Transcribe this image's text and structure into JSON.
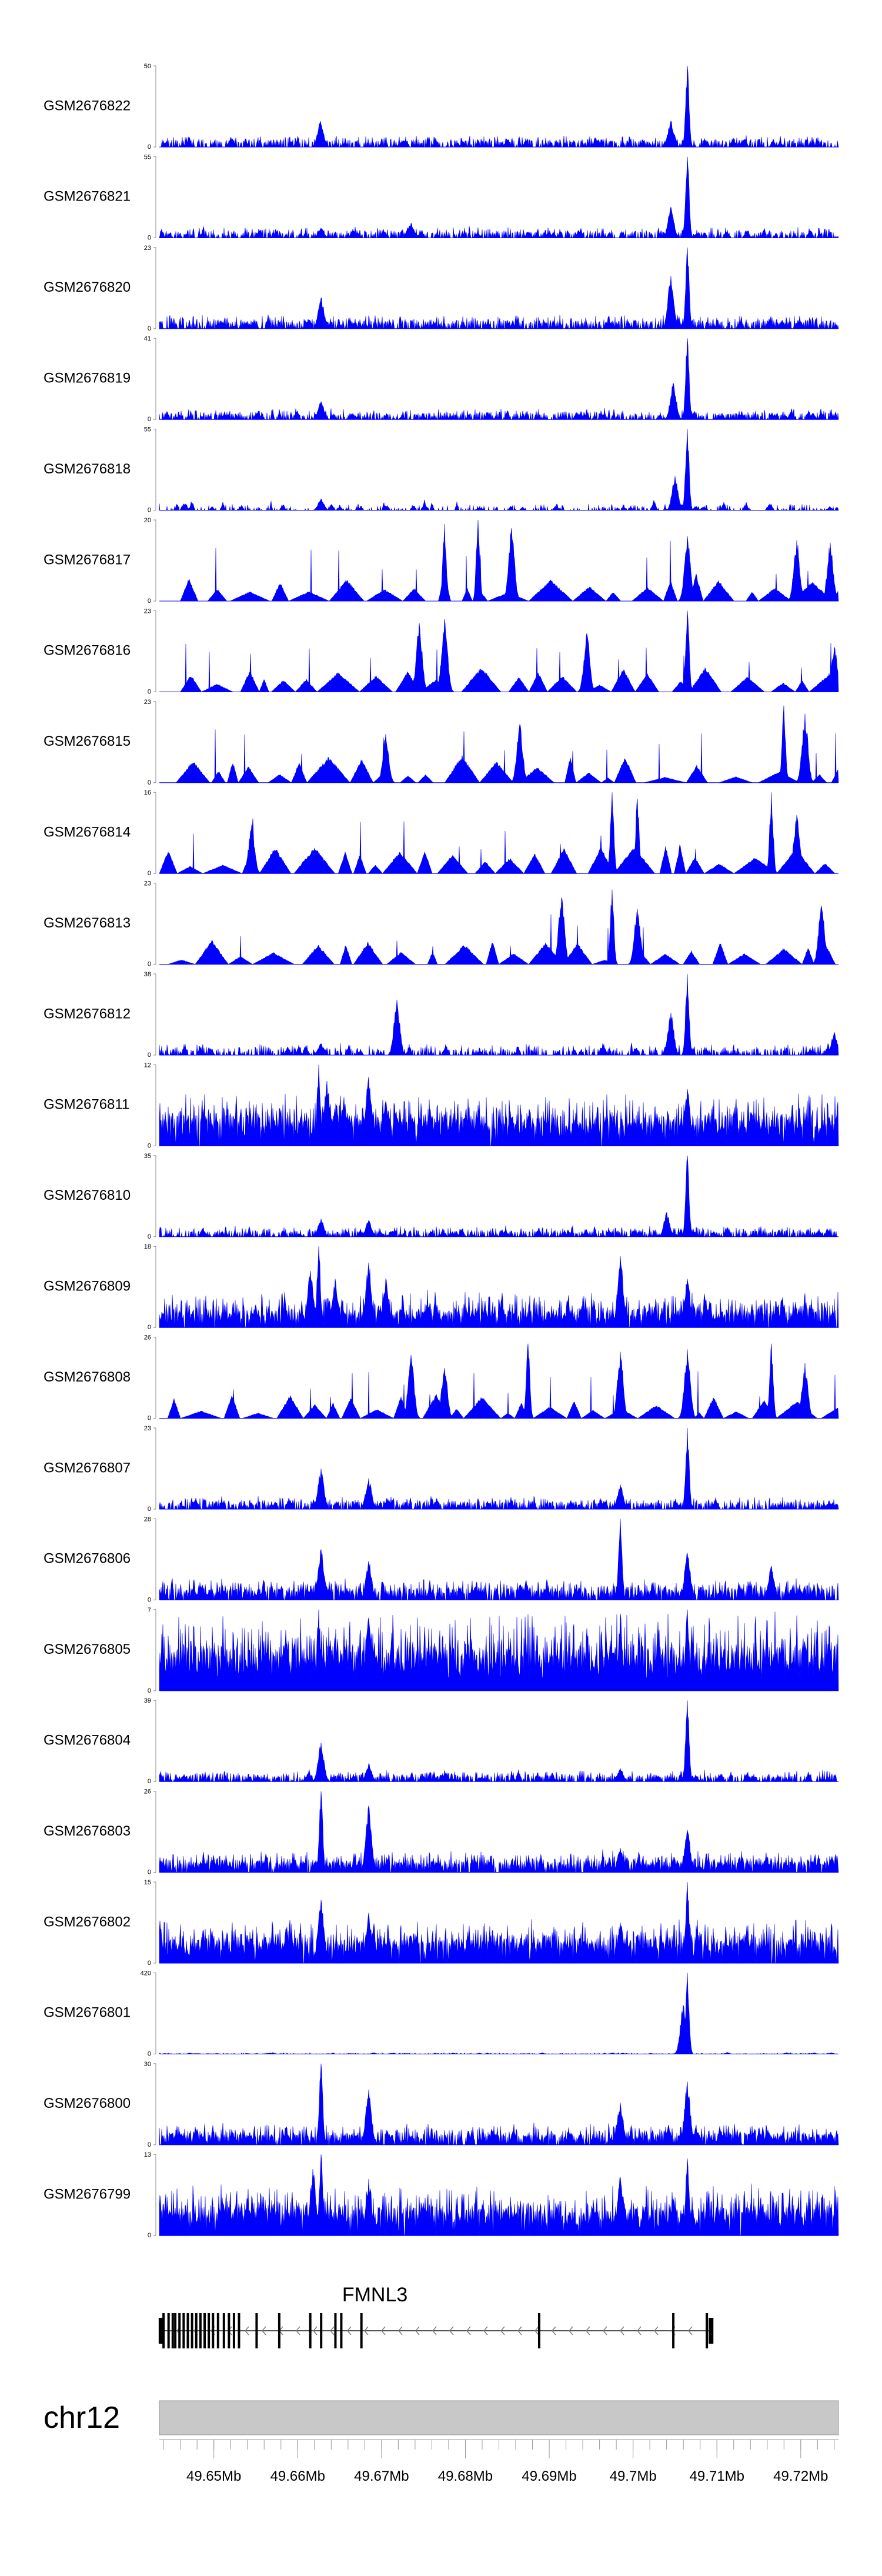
{
  "chart_data": {
    "type": "area",
    "plot_kind": "genome coverage tracks",
    "region": {
      "chromosome": "chr12",
      "start_mb": 49.6435,
      "end_mb": 49.7245
    },
    "series_color": "#0000ff",
    "tracks": [
      {
        "name": "GSM2676822",
        "ymax": 50,
        "ymin": 0,
        "baseline": 0.06,
        "noise": 0.07,
        "density": 0.55,
        "sparse": false,
        "peaks": [
          [
            49.6627,
            0.32
          ],
          [
            49.7065,
            1.0
          ],
          [
            49.7045,
            0.32
          ]
        ]
      },
      {
        "name": "GSM2676821",
        "ymax": 55,
        "ymin": 0,
        "baseline": 0.05,
        "noise": 0.07,
        "density": 0.55,
        "sparse": false,
        "peaks": [
          [
            49.6735,
            0.18
          ],
          [
            49.6628,
            0.12
          ],
          [
            49.7065,
            1.0
          ],
          [
            49.7045,
            0.38
          ]
        ]
      },
      {
        "name": "GSM2676820",
        "ymax": 23,
        "ymin": 0,
        "baseline": 0.07,
        "noise": 0.09,
        "density": 0.6,
        "sparse": false,
        "peaks": [
          [
            49.6628,
            0.38
          ],
          [
            49.7065,
            1.0
          ],
          [
            49.7045,
            0.65
          ]
        ]
      },
      {
        "name": "GSM2676819",
        "ymax": 41,
        "ymin": 0,
        "baseline": 0.05,
        "noise": 0.07,
        "density": 0.55,
        "sparse": false,
        "peaks": [
          [
            49.6628,
            0.22
          ],
          [
            49.7065,
            1.0
          ],
          [
            49.7048,
            0.45
          ]
        ]
      },
      {
        "name": "GSM2676818",
        "ymax": 55,
        "ymin": 0,
        "baseline": 0.02,
        "noise": 0.06,
        "density": 0.25,
        "sparse": false,
        "peaks": [
          [
            49.6628,
            0.14
          ],
          [
            49.7065,
            1.0
          ],
          [
            49.705,
            0.42
          ]
        ]
      },
      {
        "name": "GSM2676817",
        "ymax": 20,
        "ymin": 0,
        "baseline": 0.0,
        "noise": 0.42,
        "density": 0.12,
        "sparse": true,
        "start_mb": 49.646,
        "peaks": [
          [
            49.6775,
            0.95
          ],
          [
            49.6815,
            1.0
          ],
          [
            49.6855,
            0.9
          ],
          [
            49.7065,
            0.8
          ],
          [
            49.7195,
            0.75
          ],
          [
            49.7235,
            0.72
          ]
        ]
      },
      {
        "name": "GSM2676816",
        "ymax": 23,
        "ymin": 0,
        "baseline": 0.0,
        "noise": 0.38,
        "density": 0.12,
        "sparse": true,
        "start_mb": 49.646,
        "peaks": [
          [
            49.6745,
            0.85
          ],
          [
            49.6775,
            0.9
          ],
          [
            49.6945,
            0.72
          ],
          [
            49.7065,
            1.0
          ],
          [
            49.724,
            0.55
          ]
        ]
      },
      {
        "name": "GSM2676815",
        "ymax": 23,
        "ymin": 0,
        "baseline": 0.0,
        "noise": 0.4,
        "density": 0.09,
        "sparse": true,
        "start_mb": 49.6455,
        "peaks": [
          [
            49.6705,
            0.6
          ],
          [
            49.6865,
            0.72
          ],
          [
            49.718,
            0.95
          ],
          [
            49.7205,
            0.85
          ]
        ]
      },
      {
        "name": "GSM2676814",
        "ymax": 16,
        "ymin": 0,
        "baseline": 0.0,
        "noise": 0.42,
        "density": 0.12,
        "sparse": true,
        "start_mb": 49.6435,
        "peaks": [
          [
            49.6545,
            0.6
          ],
          [
            49.6975,
            1.0
          ],
          [
            49.7005,
            0.92
          ],
          [
            49.7165,
            1.0
          ],
          [
            49.7195,
            0.72
          ]
        ]
      },
      {
        "name": "GSM2676813",
        "ymax": 23,
        "ymin": 0,
        "baseline": 0.0,
        "noise": 0.36,
        "density": 0.1,
        "sparse": true,
        "start_mb": 49.6445,
        "peaks": [
          [
            49.6915,
            0.82
          ],
          [
            49.6975,
            0.92
          ],
          [
            49.7005,
            0.68
          ],
          [
            49.7225,
            0.72
          ]
        ]
      },
      {
        "name": "GSM2676812",
        "ymax": 38,
        "ymin": 0,
        "baseline": 0.05,
        "noise": 0.08,
        "density": 0.45,
        "sparse": false,
        "peaks": [
          [
            49.6718,
            0.68
          ],
          [
            49.6628,
            0.14
          ],
          [
            49.7065,
            1.0
          ],
          [
            49.7045,
            0.52
          ],
          [
            49.724,
            0.28
          ]
        ]
      },
      {
        "name": "GSM2676811",
        "ymax": 12,
        "ymin": 0,
        "baseline": 0.28,
        "noise": 0.3,
        "density": 0.95,
        "sparse": false,
        "peaks": [
          [
            49.6625,
            1.0
          ],
          [
            49.6635,
            0.8
          ],
          [
            49.6655,
            0.6
          ],
          [
            49.6685,
            0.85
          ],
          [
            49.6705,
            0.55
          ],
          [
            49.7065,
            0.7
          ],
          [
            49.7245,
            0.58
          ]
        ]
      },
      {
        "name": "GSM2676810",
        "ymax": 35,
        "ymin": 0,
        "baseline": 0.05,
        "noise": 0.07,
        "density": 0.55,
        "sparse": false,
        "peaks": [
          [
            49.6628,
            0.22
          ],
          [
            49.6685,
            0.2
          ],
          [
            49.7065,
            1.0
          ],
          [
            49.704,
            0.3
          ]
        ]
      },
      {
        "name": "GSM2676809",
        "ymax": 18,
        "ymin": 0,
        "baseline": 0.16,
        "noise": 0.24,
        "density": 0.9,
        "sparse": false,
        "peaks": [
          [
            49.6625,
            1.0
          ],
          [
            49.6615,
            0.7
          ],
          [
            49.6645,
            0.6
          ],
          [
            49.6685,
            0.8
          ],
          [
            49.6705,
            0.6
          ],
          [
            49.6985,
            0.88
          ],
          [
            49.7065,
            0.6
          ]
        ]
      },
      {
        "name": "GSM2676808",
        "ymax": 26,
        "ymin": 0,
        "baseline": 0.0,
        "noise": 0.36,
        "density": 0.13,
        "sparse": true,
        "start_mb": 49.6445,
        "peaks": [
          [
            49.6735,
            0.78
          ],
          [
            49.6775,
            0.62
          ],
          [
            49.6875,
            0.92
          ],
          [
            49.6985,
            0.82
          ],
          [
            49.7065,
            0.85
          ],
          [
            49.7165,
            0.92
          ],
          [
            49.7205,
            0.68
          ]
        ]
      },
      {
        "name": "GSM2676807",
        "ymax": 23,
        "ymin": 0,
        "baseline": 0.06,
        "noise": 0.08,
        "density": 0.6,
        "sparse": false,
        "peaks": [
          [
            49.6628,
            0.5
          ],
          [
            49.6685,
            0.38
          ],
          [
            49.6985,
            0.3
          ],
          [
            49.7065,
            1.0
          ]
        ]
      },
      {
        "name": "GSM2676806",
        "ymax": 28,
        "ymin": 0,
        "baseline": 0.1,
        "noise": 0.14,
        "density": 0.75,
        "sparse": false,
        "peaks": [
          [
            49.6628,
            0.62
          ],
          [
            49.6685,
            0.48
          ],
          [
            49.6985,
            1.0
          ],
          [
            49.7065,
            0.58
          ],
          [
            49.7165,
            0.42
          ]
        ]
      },
      {
        "name": "GSM2676805",
        "ymax": 7,
        "ymin": 0,
        "baseline": 0.4,
        "noise": 0.45,
        "density": 1.0,
        "sparse": false,
        "peaks": [
          [
            49.6625,
            1.0
          ],
          [
            49.6685,
            0.9
          ],
          [
            49.6985,
            0.95
          ],
          [
            49.7065,
            1.0
          ]
        ]
      },
      {
        "name": "GSM2676804",
        "ymax": 39,
        "ymin": 0,
        "baseline": 0.05,
        "noise": 0.08,
        "density": 0.6,
        "sparse": false,
        "peaks": [
          [
            49.6628,
            0.48
          ],
          [
            49.6685,
            0.22
          ],
          [
            49.6985,
            0.16
          ],
          [
            49.7065,
            1.0
          ]
        ]
      },
      {
        "name": "GSM2676803",
        "ymax": 26,
        "ymin": 0,
        "baseline": 0.1,
        "noise": 0.14,
        "density": 0.8,
        "sparse": false,
        "peaks": [
          [
            49.6628,
            1.0
          ],
          [
            49.6685,
            0.82
          ],
          [
            49.6985,
            0.3
          ],
          [
            49.7065,
            0.52
          ]
        ]
      },
      {
        "name": "GSM2676802",
        "ymax": 15,
        "ymin": 0,
        "baseline": 0.22,
        "noise": 0.28,
        "density": 0.95,
        "sparse": false,
        "peaks": [
          [
            49.6628,
            0.78
          ],
          [
            49.6685,
            0.62
          ],
          [
            49.6985,
            0.5
          ],
          [
            49.7065,
            1.0
          ]
        ]
      },
      {
        "name": "GSM2676801",
        "ymax": 420,
        "ymin": 0,
        "baseline": 0.004,
        "noise": 0.01,
        "density": 0.3,
        "sparse": false,
        "peaks": [
          [
            49.7065,
            1.0
          ],
          [
            49.706,
            0.6
          ]
        ]
      },
      {
        "name": "GSM2676800",
        "ymax": 30,
        "ymin": 0,
        "baseline": 0.1,
        "noise": 0.14,
        "density": 0.8,
        "sparse": false,
        "peaks": [
          [
            49.6628,
            1.0
          ],
          [
            49.6685,
            0.68
          ],
          [
            49.6985,
            0.52
          ],
          [
            49.7065,
            0.78
          ]
        ]
      },
      {
        "name": "GSM2676799",
        "ymax": 13,
        "ymin": 0,
        "baseline": 0.26,
        "noise": 0.3,
        "density": 0.95,
        "sparse": false,
        "peaks": [
          [
            49.6628,
            1.0
          ],
          [
            49.6618,
            0.82
          ],
          [
            49.6685,
            0.7
          ],
          [
            49.6985,
            0.72
          ],
          [
            49.7065,
            0.95
          ]
        ]
      }
    ],
    "gene": {
      "name": "FMNL3",
      "start_mb": 49.6435,
      "end_mb": 49.7093,
      "strand": "-",
      "exons_mb": [
        49.6437,
        49.644,
        49.6446,
        49.6451,
        49.6454,
        49.6459,
        49.6464,
        49.6469,
        49.6474,
        49.6479,
        49.6484,
        49.6489,
        49.6494,
        49.6499,
        49.6505,
        49.6512,
        49.6518,
        49.6524,
        49.653,
        49.6551,
        49.6578,
        49.6615,
        49.6628,
        49.6645,
        49.6652,
        49.6676,
        49.6888,
        49.7048,
        49.7088,
        49.7093
      ]
    },
    "axis": {
      "chromosome_label": "chr12",
      "ticks_mb": [
        49.65,
        49.66,
        49.67,
        49.68,
        49.69,
        49.7,
        49.71,
        49.72
      ],
      "tick_labels": [
        "49.65Mb",
        "49.66Mb",
        "49.67Mb",
        "49.68Mb",
        "49.69Mb",
        "49.7Mb",
        "49.71Mb",
        "49.72Mb"
      ],
      "minor_tick_step_mb": 0.002
    }
  }
}
